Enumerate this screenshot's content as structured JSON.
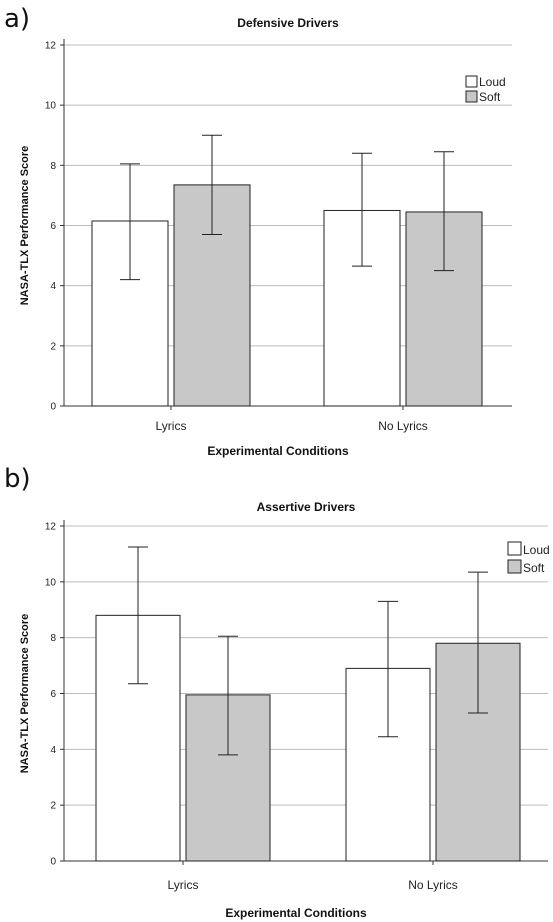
{
  "panels": [
    {
      "letter": "a)"
    },
    {
      "letter": "b)"
    }
  ],
  "chart_data": [
    {
      "type": "bar",
      "title": "Defensive Drivers",
      "xlabel": "Experimental Conditions",
      "ylabel": "NASA-TLX Performance Score",
      "categories": [
        "Lyrics",
        "No Lyrics"
      ],
      "ylim": [
        0,
        12
      ],
      "yticks": [
        0,
        2,
        4,
        6,
        8,
        10,
        12
      ],
      "grid": true,
      "legend_position": "top-right",
      "series": [
        {
          "name": "Loud",
          "color": "#ffffff",
          "values": [
            6.15,
            6.5
          ],
          "err_low": [
            4.2,
            4.65
          ],
          "err_high": [
            8.05,
            8.4
          ]
        },
        {
          "name": "Soft",
          "color": "#c8c8c8",
          "values": [
            7.35,
            6.45
          ],
          "err_low": [
            5.7,
            4.5
          ],
          "err_high": [
            9.0,
            8.45
          ]
        }
      ]
    },
    {
      "type": "bar",
      "title": "Assertive Drivers",
      "xlabel": "Experimental Conditions",
      "ylabel": "NASA-TLX Performance Score",
      "categories": [
        "Lyrics",
        "No Lyrics"
      ],
      "ylim": [
        0,
        12
      ],
      "yticks": [
        0,
        2,
        4,
        6,
        8,
        10,
        12
      ],
      "grid": true,
      "legend_position": "top-right",
      "series": [
        {
          "name": "Loud",
          "color": "#ffffff",
          "values": [
            8.8,
            6.9
          ],
          "err_low": [
            6.35,
            4.45
          ],
          "err_high": [
            11.25,
            9.3
          ]
        },
        {
          "name": "Soft",
          "color": "#c8c8c8",
          "values": [
            5.95,
            7.8
          ],
          "err_low": [
            3.8,
            5.3
          ],
          "err_high": [
            8.05,
            10.35
          ]
        }
      ]
    }
  ]
}
